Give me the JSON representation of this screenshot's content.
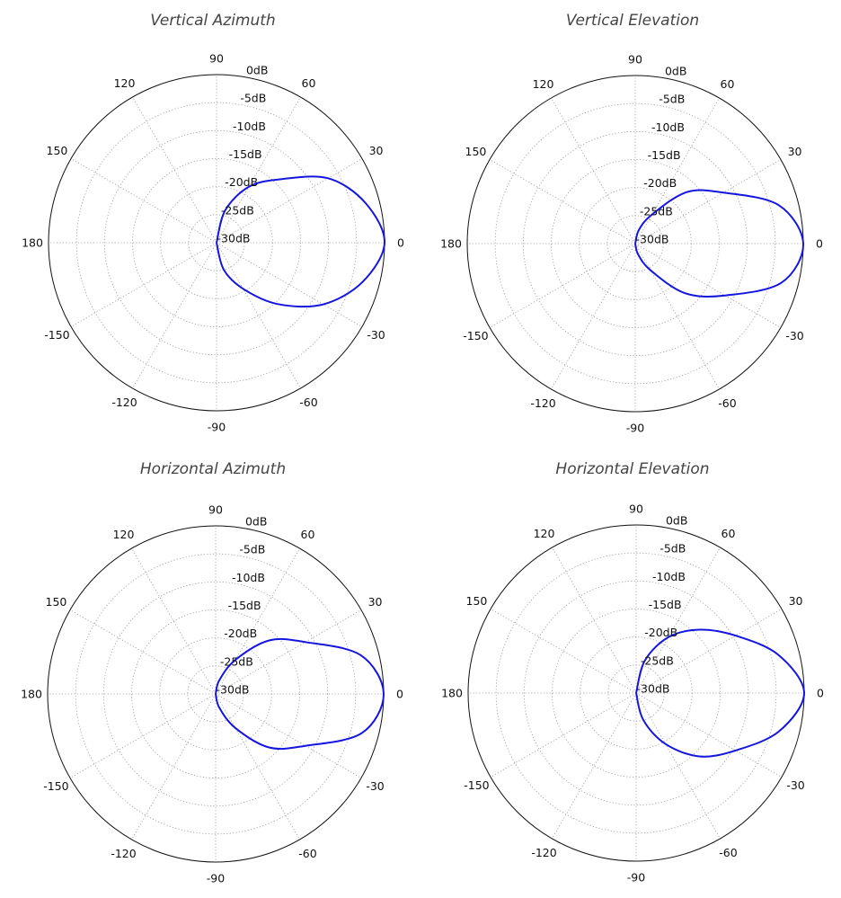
{
  "chart_data": [
    {
      "type": "line",
      "polar": true,
      "title": "Vertical Azimuth",
      "angle_ticks": [
        "0",
        "30",
        "60",
        "90",
        "120",
        "150",
        "180",
        "-150",
        "-120",
        "-90",
        "-60",
        "-30"
      ],
      "radial_ticks": [
        "0dB",
        "-5dB",
        "-10dB",
        "-15dB",
        "-20dB",
        "-25dB",
        "-30dB"
      ],
      "rlim": [
        -30,
        0
      ],
      "grid": true,
      "color": "#1515e0",
      "angles_deg": [
        -90,
        -75,
        -60,
        -45,
        -30,
        -15,
        0,
        15,
        30,
        45,
        60,
        75,
        90
      ],
      "values_db": [
        -30,
        -25,
        -20.5,
        -14.5,
        -8,
        -3,
        0,
        -2.5,
        -7,
        -14,
        -18.5,
        -24,
        -30
      ]
    },
    {
      "type": "line",
      "polar": true,
      "title": "Vertical Elevation",
      "angle_ticks": [
        "0",
        "30",
        "60",
        "90",
        "120",
        "150",
        "180",
        "-150",
        "-120",
        "-90",
        "-60",
        "-30"
      ],
      "radial_ticks": [
        "0dB",
        "-5dB",
        "-10dB",
        "-15dB",
        "-20dB",
        "-25dB",
        "-30dB"
      ],
      "rlim": [
        -30,
        0
      ],
      "grid": true,
      "color": "#1515e0",
      "angles_deg": [
        -90,
        -75,
        -60,
        -45,
        -30,
        -15,
        0,
        15,
        30,
        45,
        60,
        75,
        90
      ],
      "values_db": [
        -30,
        -28,
        -24.5,
        -17.5,
        -11.5,
        -3,
        0,
        -3.5,
        -11.8,
        -17,
        -24,
        -27.5,
        -30
      ]
    },
    {
      "type": "line",
      "polar": true,
      "title": "Horizontal Azimuth",
      "angle_ticks": [
        "0",
        "30",
        "60",
        "90",
        "120",
        "150",
        "180",
        "-150",
        "-120",
        "-90",
        "-60",
        "-30"
      ],
      "radial_ticks": [
        "0dB",
        "-5dB",
        "-10dB",
        "-15dB",
        "-20dB",
        "-25dB",
        "-30dB"
      ],
      "rlim": [
        -30,
        0
      ],
      "grid": true,
      "color": "#1515e0",
      "angles_deg": [
        -90,
        -75,
        -60,
        -45,
        -30,
        -15,
        0,
        15,
        30,
        45,
        60,
        75,
        90
      ],
      "values_db": [
        -30,
        -27.5,
        -23,
        -16.5,
        -11.5,
        -3,
        0,
        -3.2,
        -11.5,
        -16.5,
        -23,
        -27.5,
        -30
      ]
    },
    {
      "type": "line",
      "polar": true,
      "title": "Horizontal Elevation",
      "angle_ticks": [
        "0",
        "30",
        "60",
        "90",
        "120",
        "150",
        "180",
        "-150",
        "-120",
        "-90",
        "-60",
        "-30"
      ],
      "radial_ticks": [
        "0dB",
        "-5dB",
        "-10dB",
        "-15dB",
        "-20dB",
        "-25dB",
        "-30dB"
      ],
      "rlim": [
        -30,
        0
      ],
      "grid": true,
      "color": "#1515e0",
      "angles_deg": [
        -90,
        -75,
        -60,
        -45,
        -30,
        -15,
        0,
        15,
        30,
        45,
        60,
        75,
        90
      ],
      "values_db": [
        -30,
        -25,
        -19.5,
        -14,
        -9.5,
        -3.6,
        0,
        -3.7,
        -9.5,
        -14,
        -18.5,
        -24,
        -30
      ]
    }
  ]
}
